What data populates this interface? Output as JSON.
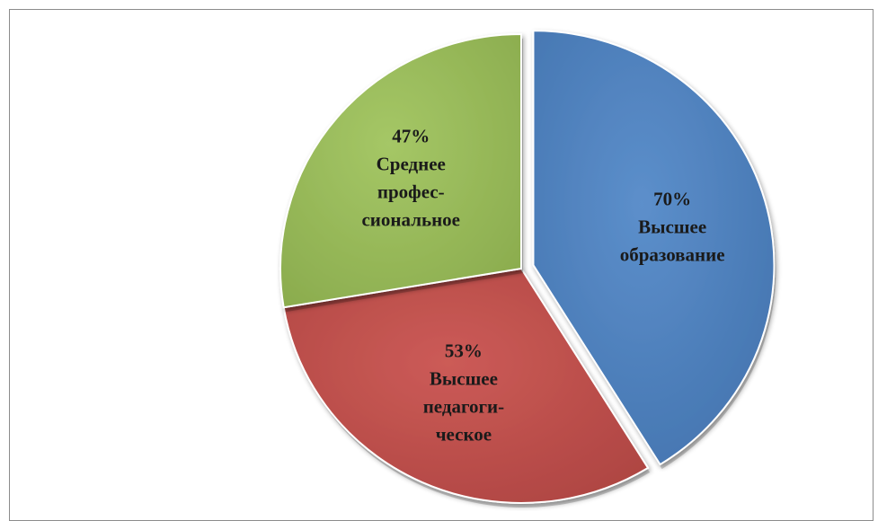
{
  "chart_data": {
    "type": "pie",
    "exploded": true,
    "shading": "3d",
    "slices": [
      {
        "value": 70,
        "label": "70%",
        "lines": [
          "70%",
          "Высшее",
          "образование"
        ],
        "color": "#4f81bd"
      },
      {
        "value": 53,
        "label": "53%",
        "lines": [
          "53%",
          "Высшее",
          "педагоги-",
          "ческое"
        ],
        "color": "#c0504d"
      },
      {
        "value": 47,
        "label": "47%",
        "lines": [
          "47%",
          "Среднее",
          "профес-",
          "сиональное"
        ],
        "color": "#9bbb59"
      }
    ]
  }
}
